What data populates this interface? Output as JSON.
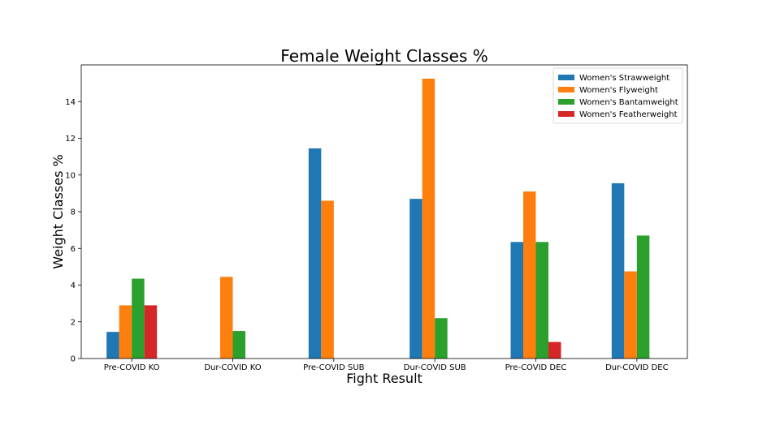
{
  "chart_data": {
    "type": "bar",
    "title": "Female Weight Classes %",
    "xlabel": "Fight Result",
    "ylabel": "Weight Classes %",
    "ylim": [
      0,
      16
    ],
    "yticks": [
      0,
      2,
      4,
      6,
      8,
      10,
      12,
      14
    ],
    "categories": [
      "Pre-COVID KO",
      "Dur-COVID KO",
      "Pre-COVID SUB",
      "Dur-COVID SUB",
      "Pre-COVID DEC",
      "Dur-COVID DEC"
    ],
    "series": [
      {
        "name": "Women's Strawweight",
        "color": "#1f77b4",
        "values": [
          1.45,
          0,
          11.45,
          8.7,
          6.35,
          9.55
        ]
      },
      {
        "name": "Women's Flyweight",
        "color": "#ff7f0e",
        "values": [
          2.9,
          4.45,
          8.6,
          15.25,
          9.1,
          4.75
        ]
      },
      {
        "name": "Women's Bantamweight",
        "color": "#2ca02c",
        "values": [
          4.35,
          1.5,
          0,
          2.2,
          6.35,
          6.7
        ]
      },
      {
        "name": "Women's Featherweight",
        "color": "#d62728",
        "values": [
          2.9,
          0,
          0,
          0,
          0.9,
          0
        ]
      }
    ],
    "grid": false,
    "legend": "top-right"
  }
}
